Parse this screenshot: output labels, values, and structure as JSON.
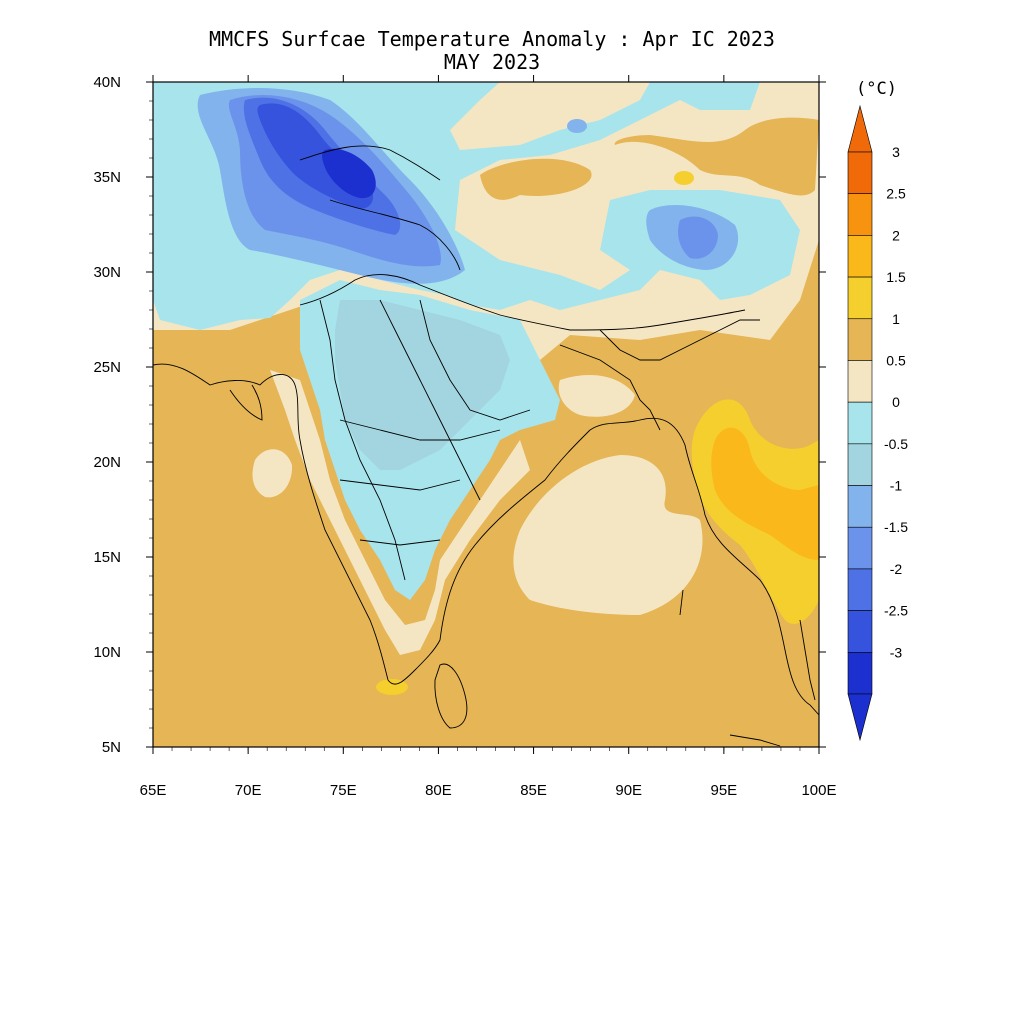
{
  "title": {
    "line1": "MMCFS Surfcae Temperature Anomaly : Apr IC 2023",
    "line2": "MAY 2023"
  },
  "map": {
    "lon_range": [
      65,
      100
    ],
    "lat_range": [
      5,
      40
    ],
    "lon_ticks": [
      "65E",
      "70E",
      "75E",
      "80E",
      "85E",
      "90E",
      "95E",
      "100E"
    ],
    "lat_ticks": [
      "5N",
      "10N",
      "15N",
      "20N",
      "25N",
      "30N",
      "35N",
      "40N"
    ]
  },
  "colorbar": {
    "unit": "(°C)",
    "labels": [
      "3",
      "2.5",
      "2",
      "1.5",
      "1",
      "0.5",
      "0",
      "-0.5",
      "-1",
      "-1.5",
      "-2",
      "-2.5",
      "-3"
    ],
    "colors": [
      "#f06a0a",
      "#f7930f",
      "#fbb81a",
      "#f4cf2e",
      "#e5b556",
      "#f5e6c3",
      "#a8e4ec",
      "#a3d5e0",
      "#82b3ec",
      "#6c93eb",
      "#4e72e6",
      "#3653dd",
      "#1c30cf"
    ],
    "min_extend_color": "#1c30cf",
    "max_extend_color": "#f06a0a"
  }
}
